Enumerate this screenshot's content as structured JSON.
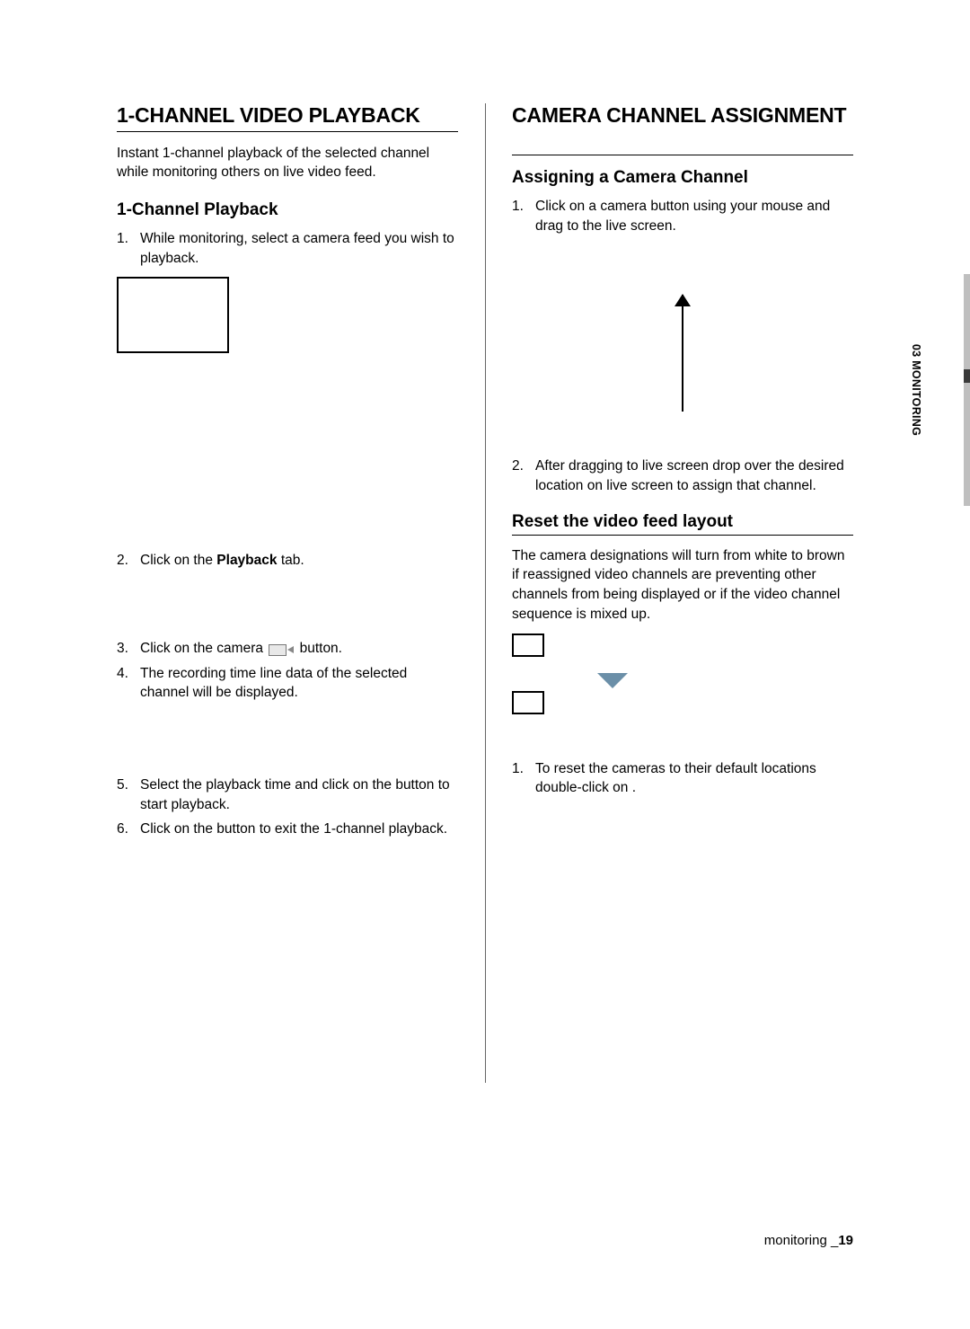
{
  "colors": {
    "text": "#000000",
    "rule": "#000000",
    "side_bar": "#bfbfbf",
    "side_accent": "#3a3a3a",
    "triangle": "#6b8fa8",
    "icon_body": "#e8e8e8",
    "icon_border": "#777777"
  },
  "side_tab": {
    "label": "03 MONITORING"
  },
  "left": {
    "h1": "1-CHANNEL VIDEO PLAYBACK",
    "intro": "Instant 1-channel playback of the selected channel while monitoring others on live video feed.",
    "h2": "1-Channel Playback",
    "step1": "While monitoring, select a camera feed you wish to playback.",
    "step2_a": "Click on the ",
    "step2_bold": "Playback",
    "step2_b": " tab.",
    "step3_a": "Click on the camera ",
    "step3_b": " button.",
    "step4": "The recording time line data of the selected channel will be displayed.",
    "step5": "Select the playback time and click on the button to start playback.",
    "step6": "Click on the        button to exit the 1-channel playback."
  },
  "right": {
    "h1": "CAMERA CHANNEL ASSIGNMENT",
    "h2": "Assigning a Camera Channel",
    "a_step1": "Click on a camera button using your mouse and drag to the live screen.",
    "a_step2": "After dragging to live screen drop over the desired location on live screen to assign that channel.",
    "h3": "Reset the video feed layout",
    "reset_intro": "The camera designations will turn from white to brown if  reassigned video channels are preventing other channels from being displayed or if the video channel sequence is mixed up.",
    "r_step1": "To reset the cameras to their default locations double-click on         ."
  },
  "footer": {
    "section": "monitoring ",
    "underscore": "_",
    "page": "19"
  }
}
